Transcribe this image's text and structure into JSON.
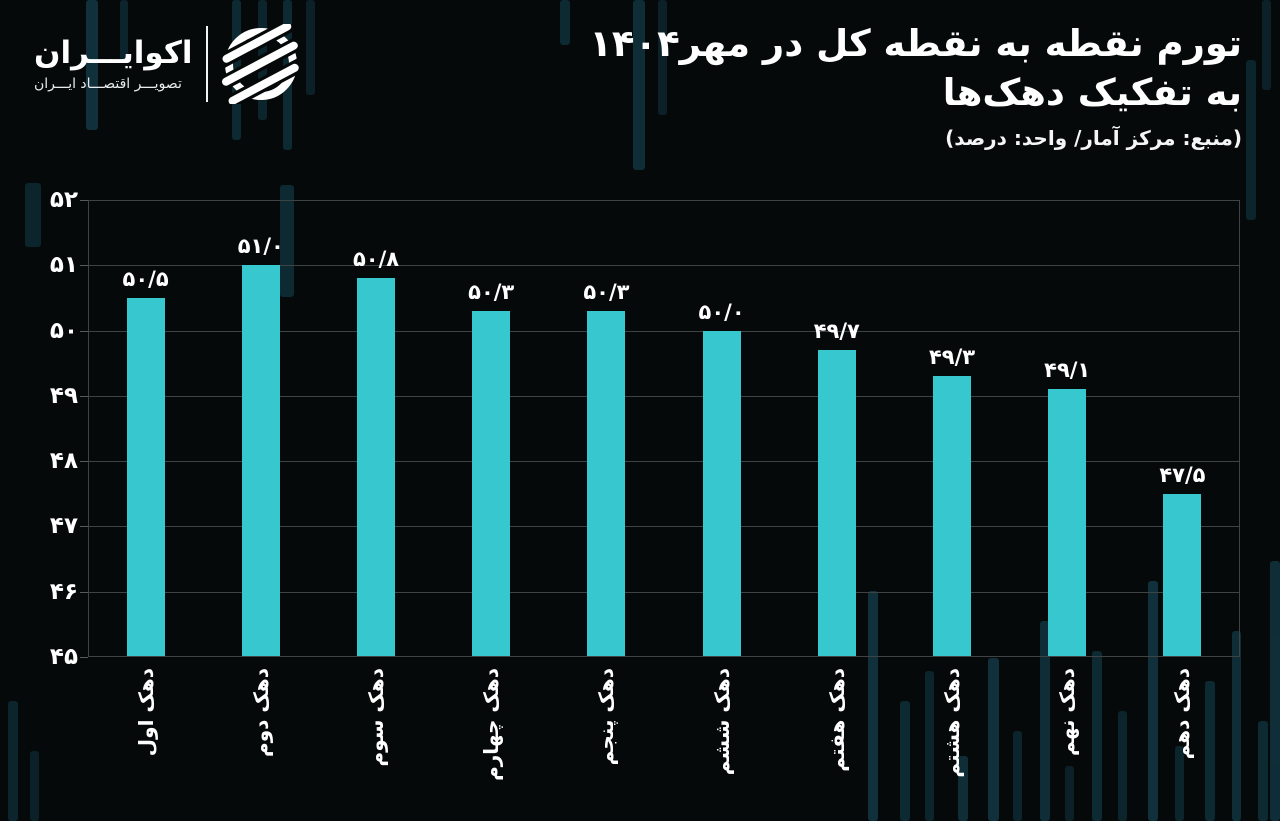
{
  "brand": {
    "name": "اکوایـــران",
    "tagline": "تصویـــر اقتصـــاد ایـــران",
    "logo_icon": "ecoiran-emblem"
  },
  "header": {
    "title_line1": "تورم نقطه به نقطه کل در مهر۱۴۰۴",
    "title_line2": "به تفکیک دهک‌ها",
    "subtitle": "(منبع: مرکز آمار/ واحد: درصد)"
  },
  "chart_data": {
    "type": "bar",
    "title": "تورم نقطه به نقطه کل در مهر۱۴۰۴ به تفکیک دهک‌ها",
    "subtitle": "(منبع: مرکز آمار/ واحد: درصد)",
    "categories": [
      "دهک اول",
      "دهک دوم",
      "دهک سوم",
      "دهک چهارم",
      "دهک پنجم",
      "دهک ششم",
      "دهک هفتم",
      "دهک هشتم",
      "دهک نهم",
      "دهک دهم"
    ],
    "values": [
      50.5,
      51.0,
      50.8,
      50.3,
      50.3,
      50.0,
      49.7,
      49.3,
      49.1,
      47.5
    ],
    "value_labels": [
      "۵۰/۵",
      "۵۱/۰",
      "۵۰/۸",
      "۵۰/۳",
      "۵۰/۳",
      "۵۰/۰",
      "۴۹/۷",
      "۴۹/۳",
      "۴۹/۱",
      "۴۷/۵"
    ],
    "y_ticks": [
      52,
      51,
      50,
      49,
      48,
      47,
      46,
      45
    ],
    "y_tick_labels": [
      "۵۲",
      "۵۱",
      "۵۰",
      "۴۹",
      "۴۸",
      "۴۷",
      "۴۶",
      "۴۵"
    ],
    "ylim": [
      45,
      52
    ],
    "xlabel": "",
    "ylabel": "",
    "grid": true,
    "legend": "none",
    "bar_color": "#36C7CF",
    "background": "#060909",
    "grid_color": "#3e4444",
    "text_color": "#ffffff"
  }
}
